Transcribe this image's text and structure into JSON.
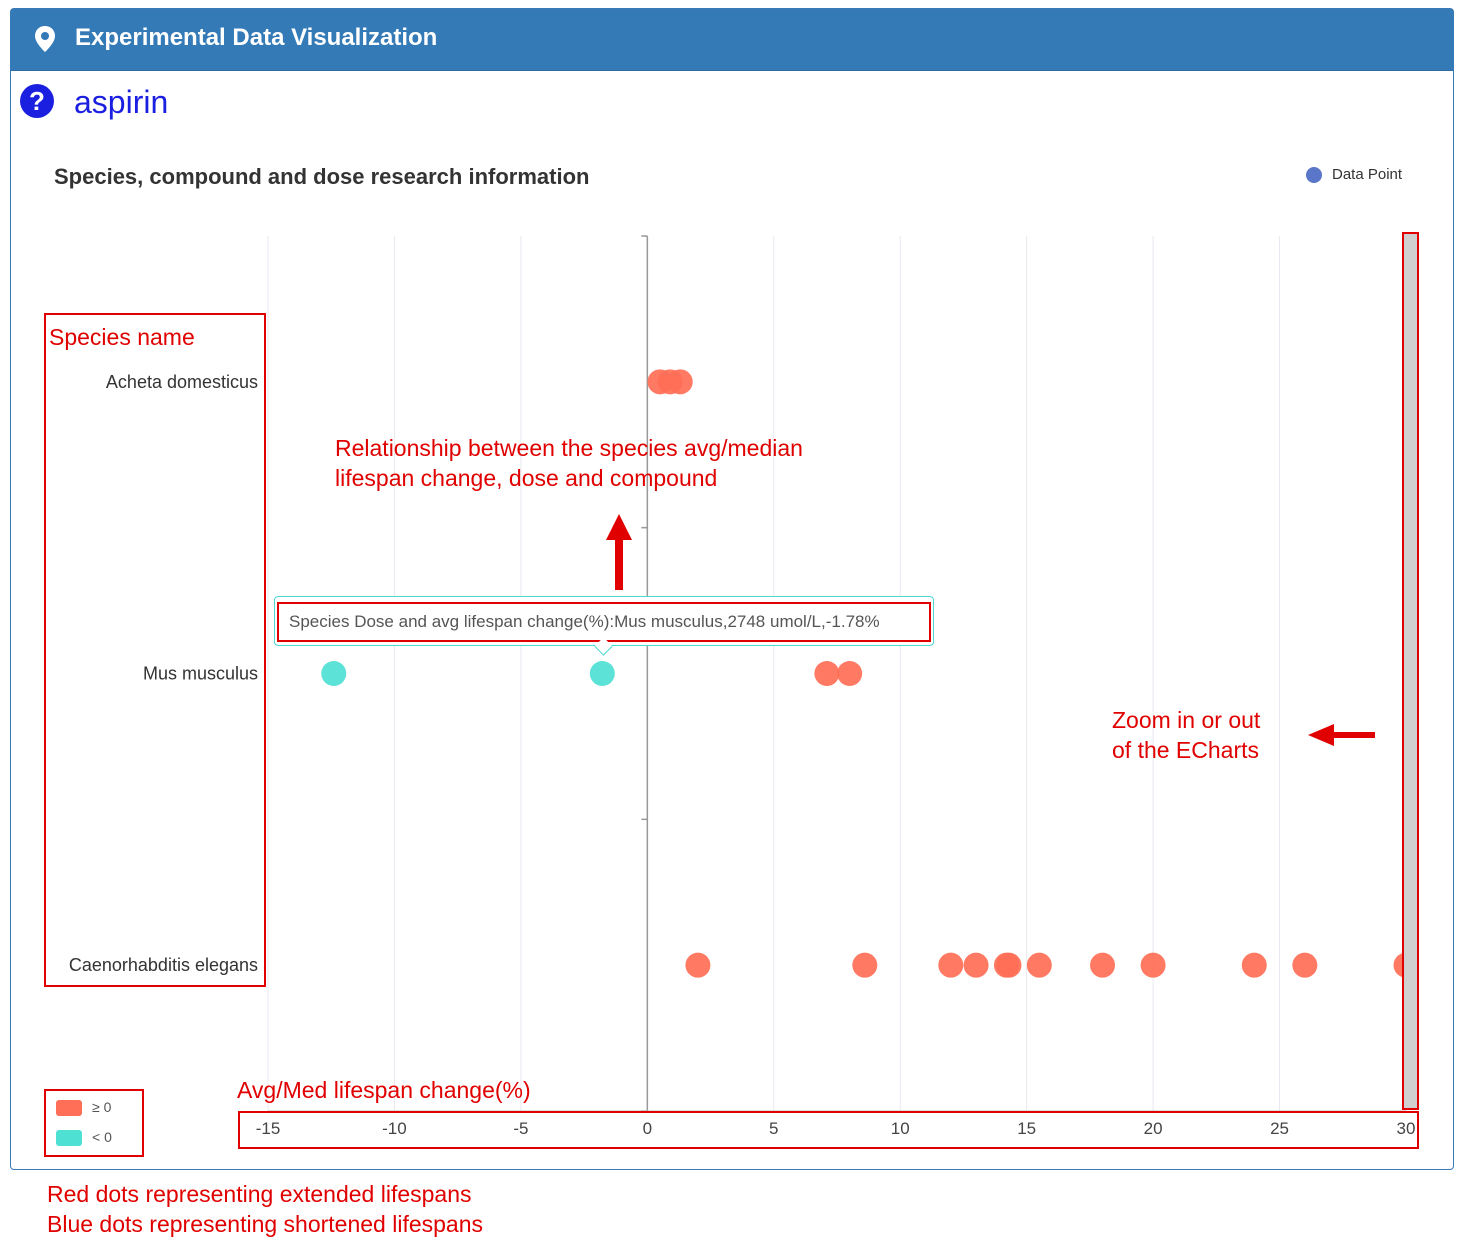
{
  "header": {
    "title": "Experimental Data Visualization",
    "icon": "map-marker-icon"
  },
  "compound": {
    "name": "aspirin",
    "icon": "question-circle-icon"
  },
  "legend": {
    "label": "Data Point",
    "color": "#5a76c8"
  },
  "visual_map": {
    "items": [
      {
        "label": "≥ 0",
        "color": "#ff6e56"
      },
      {
        "label": "< 0",
        "color": "#4fe0d4"
      }
    ]
  },
  "tooltip": {
    "text": "Species Dose and avg lifespan change(%):Mus musculus,2748 umol/L,-1.78%"
  },
  "annotations": {
    "species_name": "Species name",
    "relationship_line1": "Relationship between the species avg/median",
    "relationship_line2": "lifespan change, dose and compound",
    "zoom_line1": "Zoom in or out",
    "zoom_line2": "of the ECharts",
    "axis_label": "Avg/Med lifespan change(%)",
    "footer_line1": "Red dots representing extended lifespans",
    "footer_line2": "Blue dots representing shortened lifespans"
  },
  "chart_data": {
    "type": "scatter",
    "title": "Species, compound and dose research information",
    "xlabel": "Avg/Med lifespan change(%)",
    "ylabel": "",
    "xlim": [
      -15,
      30
    ],
    "x_ticks": [
      -15,
      -10,
      -5,
      0,
      5,
      10,
      15,
      20,
      25,
      30
    ],
    "categories": [
      "Caenorhabditis elegans",
      "Mus musculus",
      "Acheta domesticus"
    ],
    "grid": true,
    "legend_position": "top-right",
    "positive_color": "#ff6e56",
    "negative_color": "#4fe0d4",
    "series": [
      {
        "name": "Data Point",
        "points": [
          {
            "species": "Acheta domesticus",
            "x": 0.5
          },
          {
            "species": "Acheta domesticus",
            "x": 0.9
          },
          {
            "species": "Acheta domesticus",
            "x": 1.3
          },
          {
            "species": "Mus musculus",
            "x": -12.4
          },
          {
            "species": "Mus musculus",
            "x": -1.78
          },
          {
            "species": "Mus musculus",
            "x": 7.1
          },
          {
            "species": "Mus musculus",
            "x": 8.0
          },
          {
            "species": "Caenorhabditis elegans",
            "x": 2.0
          },
          {
            "species": "Caenorhabditis elegans",
            "x": 8.6
          },
          {
            "species": "Caenorhabditis elegans",
            "x": 12.0
          },
          {
            "species": "Caenorhabditis elegans",
            "x": 13.0
          },
          {
            "species": "Caenorhabditis elegans",
            "x": 14.2
          },
          {
            "species": "Caenorhabditis elegans",
            "x": 14.3
          },
          {
            "species": "Caenorhabditis elegans",
            "x": 15.5
          },
          {
            "species": "Caenorhabditis elegans",
            "x": 18.0
          },
          {
            "species": "Caenorhabditis elegans",
            "x": 20.0
          },
          {
            "species": "Caenorhabditis elegans",
            "x": 24.0
          },
          {
            "species": "Caenorhabditis elegans",
            "x": 26.0
          },
          {
            "species": "Caenorhabditis elegans",
            "x": 30.0
          }
        ]
      }
    ]
  }
}
